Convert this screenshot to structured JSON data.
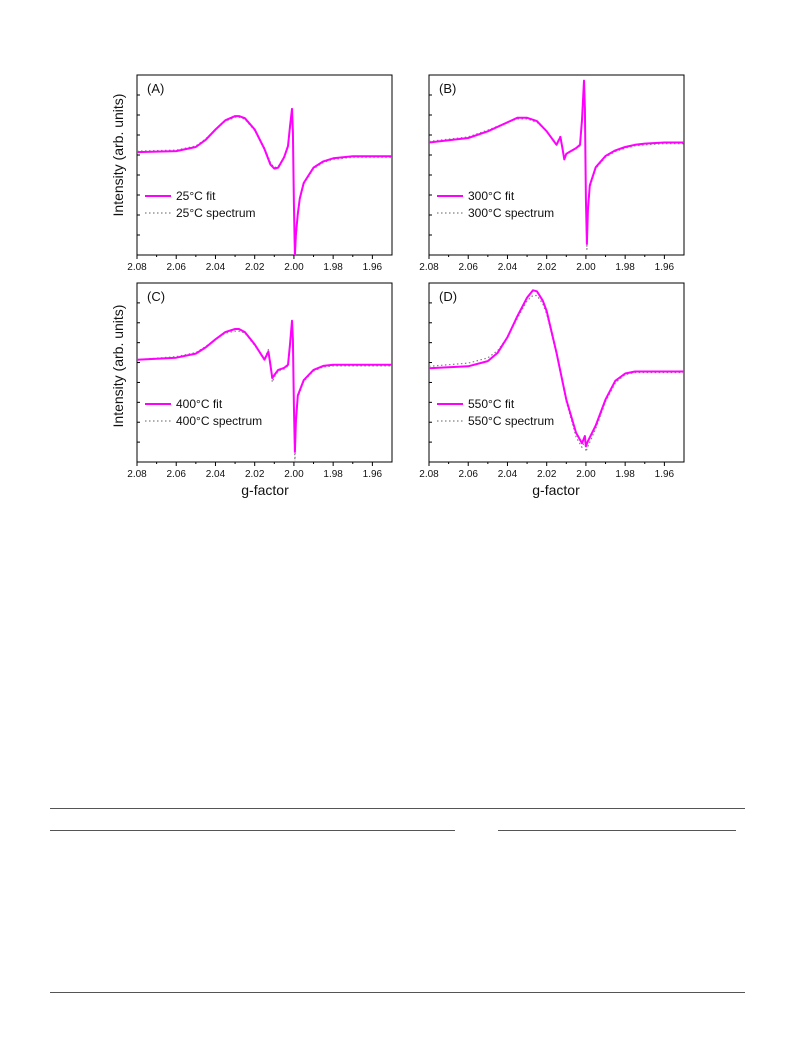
{
  "figure": {
    "ylabel": "Intensity (arb. units)",
    "xlabel": "g-factor",
    "colors": {
      "fit": "#ff00ff",
      "spectrum": "#808080",
      "axis": "#000000"
    }
  },
  "chart_data": [
    {
      "type": "line",
      "panel_label": "(A)",
      "xlabel": "",
      "ylabel": "Intensity (arb. units)",
      "xlim": [
        2.08,
        1.95
      ],
      "xticks": [
        "2.08",
        "2.06",
        "2.04",
        "2.02",
        "2.00",
        "1.98",
        "1.96"
      ],
      "ylim": [
        -1.0,
        0.75
      ],
      "legend_position": "lower-left",
      "x": [
        2.08,
        2.06,
        2.05,
        2.045,
        2.04,
        2.035,
        2.03,
        2.028,
        2.025,
        2.02,
        2.015,
        2.012,
        2.01,
        2.008,
        2.005,
        2.003,
        2.002,
        2.001,
        2.0005,
        2.0,
        1.9995,
        1.999,
        1.998,
        1.997,
        1.995,
        1.99,
        1.985,
        1.98,
        1.975,
        1.97,
        1.96,
        1.95
      ],
      "series": [
        {
          "name": "25°C fit",
          "style": "solid",
          "values": [
            0.0,
            0.01,
            0.05,
            0.12,
            0.22,
            0.31,
            0.35,
            0.35,
            0.33,
            0.22,
            0.03,
            -0.12,
            -0.16,
            -0.15,
            -0.05,
            0.06,
            0.25,
            0.42,
            0.2,
            -0.5,
            -1.0,
            -0.8,
            -0.6,
            -0.45,
            -0.3,
            -0.15,
            -0.09,
            -0.06,
            -0.05,
            -0.04,
            -0.04,
            -0.04
          ]
        },
        {
          "name": "25°C spectrum",
          "style": "dotted",
          "values": [
            0.01,
            0.02,
            0.06,
            0.13,
            0.22,
            0.3,
            0.34,
            0.34,
            0.32,
            0.21,
            0.04,
            -0.1,
            -0.15,
            -0.14,
            -0.05,
            0.05,
            0.22,
            0.38,
            0.15,
            -0.55,
            -1.05,
            -0.85,
            -0.62,
            -0.46,
            -0.31,
            -0.16,
            -0.1,
            -0.07,
            -0.06,
            -0.05,
            -0.05,
            -0.05
          ]
        }
      ]
    },
    {
      "type": "line",
      "panel_label": "(B)",
      "xlabel": "",
      "ylabel": "",
      "xlim": [
        2.08,
        1.95
      ],
      "xticks": [
        "2.08",
        "2.06",
        "2.04",
        "2.02",
        "2.00",
        "1.98",
        "1.96"
      ],
      "ylim": [
        -1.0,
        0.6
      ],
      "legend_position": "lower-left",
      "x": [
        2.08,
        2.06,
        2.05,
        2.04,
        2.035,
        2.03,
        2.025,
        2.02,
        2.015,
        2.013,
        2.012,
        2.011,
        2.01,
        2.008,
        2.005,
        2.003,
        2.002,
        2.001,
        2.0005,
        2.0,
        1.9995,
        1.999,
        1.998,
        1.995,
        1.99,
        1.985,
        1.98,
        1.975,
        1.97,
        1.96,
        1.95
      ],
      "series": [
        {
          "name": "300°C fit",
          "style": "solid",
          "values": [
            0.0,
            0.04,
            0.1,
            0.18,
            0.22,
            0.22,
            0.19,
            0.1,
            -0.02,
            0.05,
            -0.05,
            -0.15,
            -0.1,
            -0.08,
            -0.05,
            -0.02,
            0.2,
            0.55,
            0.3,
            -0.5,
            -0.9,
            -0.6,
            -0.38,
            -0.22,
            -0.12,
            -0.07,
            -0.04,
            -0.02,
            -0.01,
            0.0,
            0.0
          ]
        },
        {
          "name": "300°C spectrum",
          "style": "dotted",
          "values": [
            0.01,
            0.05,
            0.11,
            0.18,
            0.21,
            0.21,
            0.18,
            0.1,
            -0.01,
            0.06,
            -0.04,
            -0.14,
            -0.1,
            -0.08,
            -0.05,
            -0.03,
            0.18,
            0.5,
            0.25,
            -0.55,
            -0.95,
            -0.62,
            -0.4,
            -0.23,
            -0.13,
            -0.08,
            -0.05,
            -0.03,
            -0.02,
            -0.01,
            -0.01
          ]
        }
      ]
    },
    {
      "type": "line",
      "panel_label": "(C)",
      "xlabel": "g-factor",
      "ylabel": "Intensity (arb. units)",
      "xlim": [
        2.08,
        1.95
      ],
      "xticks": [
        "2.08",
        "2.06",
        "2.04",
        "2.02",
        "2.00",
        "1.98",
        "1.96"
      ],
      "ylim": [
        -1.0,
        0.75
      ],
      "legend_position": "lower-left",
      "x": [
        2.08,
        2.06,
        2.05,
        2.045,
        2.04,
        2.035,
        2.03,
        2.028,
        2.025,
        2.02,
        2.015,
        2.013,
        2.012,
        2.011,
        2.01,
        2.008,
        2.005,
        2.003,
        2.002,
        2.001,
        2.0005,
        2.0,
        1.9995,
        1.999,
        1.998,
        1.995,
        1.99,
        1.985,
        1.98,
        1.975,
        1.97,
        1.96,
        1.95
      ],
      "series": [
        {
          "name": "400°C fit",
          "style": "solid",
          "values": [
            0.0,
            0.02,
            0.06,
            0.12,
            0.2,
            0.27,
            0.3,
            0.3,
            0.27,
            0.15,
            0.0,
            0.08,
            -0.05,
            -0.18,
            -0.15,
            -0.1,
            -0.08,
            -0.05,
            0.15,
            0.38,
            0.2,
            -0.45,
            -0.9,
            -0.6,
            -0.35,
            -0.2,
            -0.1,
            -0.06,
            -0.05,
            -0.05,
            -0.05,
            -0.05,
            -0.05
          ]
        },
        {
          "name": "400°C spectrum",
          "style": "dotted",
          "values": [
            0.0,
            0.03,
            0.07,
            0.13,
            0.2,
            0.26,
            0.28,
            0.28,
            0.26,
            0.14,
            0.01,
            0.1,
            -0.03,
            -0.22,
            -0.17,
            -0.11,
            -0.09,
            -0.06,
            0.12,
            0.34,
            0.15,
            -0.5,
            -1.0,
            -0.65,
            -0.37,
            -0.21,
            -0.11,
            -0.07,
            -0.06,
            -0.06,
            -0.06,
            -0.06,
            -0.06
          ]
        }
      ]
    },
    {
      "type": "line",
      "panel_label": "(D)",
      "xlabel": "g-factor",
      "ylabel": "",
      "xlim": [
        2.08,
        1.95
      ],
      "xticks": [
        "2.08",
        "2.06",
        "2.04",
        "2.02",
        "2.00",
        "1.98",
        "1.96"
      ],
      "ylim": [
        -0.9,
        0.82
      ],
      "legend_position": "lower-left",
      "x": [
        2.08,
        2.06,
        2.05,
        2.045,
        2.04,
        2.035,
        2.03,
        2.027,
        2.025,
        2.022,
        2.02,
        2.015,
        2.01,
        2.005,
        2.002,
        2.0005,
        2.0,
        1.999,
        1.995,
        1.99,
        1.985,
        1.98,
        1.975,
        1.97,
        1.96,
        1.95
      ],
      "series": [
        {
          "name": "550°C fit",
          "style": "solid",
          "values": [
            0.0,
            0.02,
            0.07,
            0.15,
            0.3,
            0.5,
            0.68,
            0.75,
            0.74,
            0.65,
            0.55,
            0.15,
            -0.3,
            -0.62,
            -0.72,
            -0.65,
            -0.75,
            -0.7,
            -0.55,
            -0.3,
            -0.12,
            -0.05,
            -0.03,
            -0.03,
            -0.03,
            -0.03
          ]
        },
        {
          "name": "550°C spectrum",
          "style": "dotted",
          "values": [
            0.02,
            0.05,
            0.1,
            0.17,
            0.3,
            0.48,
            0.65,
            0.7,
            0.7,
            0.62,
            0.52,
            0.14,
            -0.32,
            -0.66,
            -0.76,
            -0.7,
            -0.8,
            -0.75,
            -0.58,
            -0.32,
            -0.14,
            -0.06,
            -0.04,
            -0.04,
            -0.04,
            -0.04
          ]
        }
      ]
    }
  ]
}
